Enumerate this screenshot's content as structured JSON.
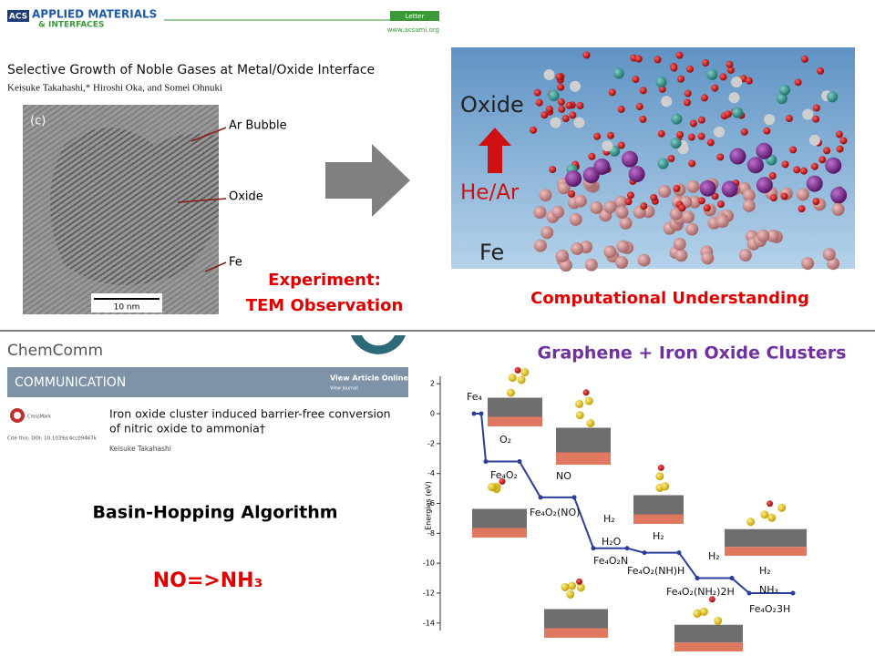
{
  "top_left": {
    "logo": "ACS",
    "journal_1": "APPLIED MATERIALS",
    "journal_2": "& INTERFACES",
    "article_type": "Letter",
    "url": "www.acsami.org",
    "title": "Selective Growth of Noble Gases at Metal/Oxide Interface",
    "authors": "Keisuke Takahashi,* Hiroshi Oka, and Somei Ohnuki",
    "panel": "(c)",
    "label_bubble": "Ar Bubble",
    "label_oxide": "Oxide",
    "label_fe": "Fe",
    "scale": "10 nm",
    "caption_1": "Experiment:",
    "caption_2": "TEM Observation"
  },
  "top_right": {
    "label_oxide": "Oxide",
    "label_gas": "He/Ar",
    "label_fe": "Fe",
    "caption": "Computational  Understanding"
  },
  "bottom_left": {
    "journal": "ChemComm",
    "banner": "COMMUNICATION",
    "view_online": "View Article Online",
    "view_journal": "View Journal",
    "crossmark": "CrossMark",
    "title_1": "Iron oxide cluster induced barrier-free conversion",
    "title_2": "of nitric oxide to ammonia†",
    "cite": "Cite this: DOI: 10.1039/c4cc09467k",
    "author": "Keisuke Takahashi",
    "method": "Basin-Hopping Algorithm",
    "reaction": "NO=>NH₃"
  },
  "bottom_right": {
    "title": "Graphene + Iron Oxide Clusters",
    "chart_data": {
      "type": "step",
      "ylabel": "Energies (eV)",
      "ylim": [
        -14.5,
        2.5
      ],
      "yticks": [
        2,
        0,
        -2,
        -4,
        -6,
        -8,
        -10,
        -12,
        -14
      ],
      "color": "#2c3e9a",
      "values": [
        0,
        -3.2,
        -5.6,
        -9.0,
        -9.3,
        -11.0,
        -12.0
      ],
      "annotations": [
        "Fe₄",
        "O₂",
        "Fe₄O₂",
        "NO",
        "Fe₄O₂(NO)",
        "H₂",
        "H₂O",
        "Fe₄O₂N",
        "H₂",
        "Fe₄O₂(NH)H",
        "H₂",
        "Fe₄O₂(NH₂)2H",
        "H₂",
        "NH₃",
        "Fe₄O₂3H"
      ]
    }
  }
}
